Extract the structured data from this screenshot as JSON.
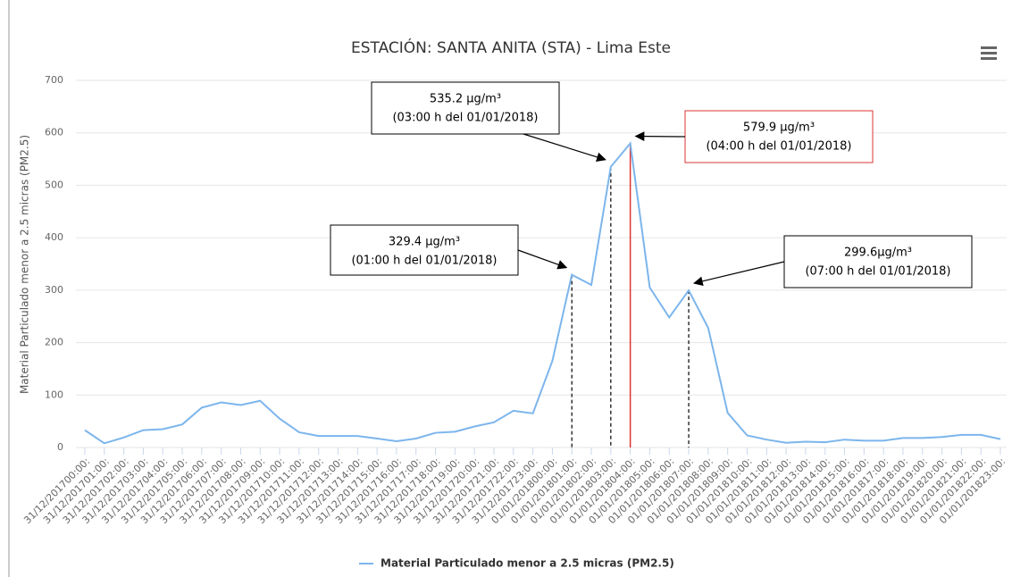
{
  "chart_data": {
    "type": "line",
    "title": "ESTACIÓN: SANTA ANITA (STA) - Lima Este",
    "y_label": "Material Particulado menor a 2.5 micras (PM2.5)",
    "categories": [
      "31/12/201700:00:",
      "31/12/201701:00:",
      "31/12/201702:00:",
      "31/12/201703:00:",
      "31/12/201704:00:",
      "31/12/201705:00:",
      "31/12/201706:00:",
      "31/12/201707:00:",
      "31/12/201708:00:",
      "31/12/201709:00:",
      "31/12/201710:00:",
      "31/12/201711:00:",
      "31/12/201712:00:",
      "31/12/201713:00:",
      "31/12/201714:00:",
      "31/12/201715:00:",
      "31/12/201716:00:",
      "31/12/201717:00:",
      "31/12/201718:00:",
      "31/12/201719:00:",
      "31/12/201720:00:",
      "31/12/201721:00:",
      "31/12/201722:00:",
      "31/12/201723:00:",
      "01/01/201800:00:",
      "01/01/201801:00:",
      "01/01/201802:00:",
      "01/01/201803:00:",
      "01/01/201804:00:",
      "01/01/201805:00:",
      "01/01/201806:00:",
      "01/01/201807:00:",
      "01/01/201808:00:",
      "01/01/201809:00:",
      "01/01/201810:00:",
      "01/01/201811:00:",
      "01/01/201812:00:",
      "01/01/201813:00:",
      "01/01/201814:00:",
      "01/01/201815:00:",
      "01/01/201816:00:",
      "01/01/201817:00:",
      "01/01/201818:00:",
      "01/01/201819:00:",
      "01/01/201820:00:",
      "01/01/201821:00:",
      "01/01/201822:00:",
      "01/01/201823:00:"
    ],
    "series": [
      {
        "name": "Material Particulado menor a 2.5 micras (PM2.5)",
        "color": "#7cb5ec",
        "values": [
          33,
          8,
          19,
          33,
          35,
          44,
          76,
          86,
          81,
          89,
          55,
          29,
          22,
          22,
          22,
          17,
          12,
          17,
          28,
          30,
          40,
          48,
          70,
          65,
          165,
          329.4,
          310,
          535.2,
          579.9,
          305,
          248,
          299.6,
          228,
          66,
          23,
          15,
          9,
          11,
          10,
          15,
          13,
          13,
          18,
          18,
          20,
          24,
          24,
          16
        ]
      }
    ],
    "ylim": [
      0,
      700
    ],
    "yticks": [
      0,
      100,
      200,
      300,
      400,
      500,
      600,
      700
    ],
    "grid": true,
    "annotations": [
      {
        "value": "329.4 µg/m³",
        "time": "(01:00 h del 01/01/2018)"
      },
      {
        "value": "535.2 µg/m³",
        "time": "(03:00 h del 01/01/2018)"
      },
      {
        "value": "579.9 µg/m³",
        "time": "(04:00 h del 01/01/2018)"
      },
      {
        "value": "299.6µg/m³",
        "time": "(07:00 h del 01/01/2018)"
      }
    ]
  }
}
